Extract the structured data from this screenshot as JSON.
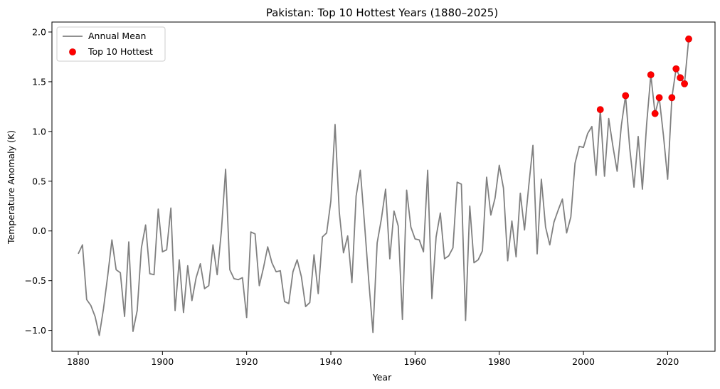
{
  "chart_data": {
    "type": "line",
    "title": "Pakistan: Top 10 Hottest Years (1880–2025)",
    "xlabel": "Year",
    "ylabel": "Temperature Anomaly (K)",
    "xlim": [
      1873.75,
      2031.25
    ],
    "ylim": [
      -1.21,
      2.1
    ],
    "xticks": [
      1880,
      1900,
      1920,
      1940,
      1960,
      1980,
      2000,
      2020
    ],
    "xtick_labels": [
      "1880",
      "1900",
      "1920",
      "1940",
      "1960",
      "1980",
      "2000",
      "2020"
    ],
    "yticks": [
      -1.0,
      -0.5,
      0.0,
      0.5,
      1.0,
      1.5,
      2.0
    ],
    "ytick_labels": [
      "−1.0",
      "−0.5",
      "0.0",
      "0.5",
      "1.0",
      "1.5",
      "2.0"
    ],
    "grid": false,
    "legend": {
      "placement": "top-left",
      "entries": [
        "Annual Mean",
        "Top 10 Hottest"
      ]
    },
    "series": [
      {
        "name": "Annual Mean",
        "color": "#808080",
        "x": [
          1880,
          1881,
          1882,
          1883,
          1884,
          1885,
          1886,
          1887,
          1888,
          1889,
          1890,
          1891,
          1892,
          1893,
          1894,
          1895,
          1896,
          1897,
          1898,
          1899,
          1900,
          1901,
          1902,
          1903,
          1904,
          1905,
          1906,
          1907,
          1908,
          1909,
          1910,
          1911,
          1912,
          1913,
          1914,
          1915,
          1916,
          1917,
          1918,
          1919,
          1920,
          1921,
          1922,
          1923,
          1924,
          1925,
          1926,
          1927,
          1928,
          1929,
          1930,
          1931,
          1932,
          1933,
          1934,
          1935,
          1936,
          1937,
          1938,
          1939,
          1940,
          1941,
          1942,
          1943,
          1944,
          1945,
          1946,
          1947,
          1948,
          1949,
          1950,
          1951,
          1952,
          1953,
          1954,
          1955,
          1956,
          1957,
          1958,
          1959,
          1960,
          1961,
          1962,
          1963,
          1964,
          1965,
          1966,
          1967,
          1968,
          1969,
          1970,
          1971,
          1972,
          1973,
          1974,
          1975,
          1976,
          1977,
          1978,
          1979,
          1980,
          1981,
          1982,
          1983,
          1984,
          1985,
          1986,
          1987,
          1988,
          1989,
          1990,
          1991,
          1992,
          1993,
          1994,
          1995,
          1996,
          1997,
          1998,
          1999,
          2000,
          2001,
          2002,
          2003,
          2004,
          2005,
          2006,
          2007,
          2008,
          2009,
          2010,
          2011,
          2012,
          2013,
          2014,
          2015,
          2016,
          2017,
          2018,
          2019,
          2020,
          2021,
          2022,
          2023,
          2024,
          2025
        ],
        "y": [
          -0.23,
          -0.14,
          -0.69,
          -0.75,
          -0.86,
          -1.05,
          -0.78,
          -0.45,
          -0.09,
          -0.39,
          -0.42,
          -0.86,
          -0.11,
          -1.01,
          -0.8,
          -0.17,
          0.06,
          -0.43,
          -0.44,
          0.22,
          -0.21,
          -0.19,
          0.23,
          -0.8,
          -0.29,
          -0.82,
          -0.35,
          -0.7,
          -0.47,
          -0.33,
          -0.58,
          -0.55,
          -0.14,
          -0.44,
          0.0,
          0.62,
          -0.39,
          -0.48,
          -0.49,
          -0.47,
          -0.87,
          -0.01,
          -0.03,
          -0.55,
          -0.37,
          -0.16,
          -0.32,
          -0.41,
          -0.4,
          -0.71,
          -0.73,
          -0.41,
          -0.29,
          -0.46,
          -0.76,
          -0.72,
          -0.24,
          -0.63,
          -0.06,
          -0.02,
          0.3,
          1.07,
          0.19,
          -0.22,
          -0.05,
          -0.52,
          0.35,
          0.61,
          0.07,
          -0.5,
          -1.02,
          -0.12,
          0.12,
          0.42,
          -0.28,
          0.2,
          0.05,
          -0.89,
          0.41,
          0.04,
          -0.08,
          -0.09,
          -0.21,
          0.61,
          -0.68,
          -0.06,
          0.18,
          -0.28,
          -0.25,
          -0.17,
          0.49,
          0.47,
          -0.9,
          0.25,
          -0.32,
          -0.29,
          -0.2,
          0.54,
          0.16,
          0.33,
          0.66,
          0.43,
          -0.3,
          0.1,
          -0.26,
          0.38,
          0.01,
          0.45,
          0.86,
          -0.23,
          0.52,
          0.04,
          -0.14,
          0.09,
          0.21,
          0.32,
          -0.02,
          0.14,
          0.68,
          0.85,
          0.84,
          0.98,
          1.05,
          0.56,
          1.22,
          0.55,
          1.13,
          0.85,
          0.6,
          1.06,
          1.36,
          0.83,
          0.44,
          0.95,
          0.42,
          1.07,
          1.57,
          1.18,
          1.34,
          0.96,
          0.52,
          1.34,
          1.63,
          1.54,
          1.48,
          1.93
        ]
      },
      {
        "name": "Top 10 Hottest",
        "color": "#ff0000",
        "x": [
          2004,
          2010,
          2016,
          2017,
          2018,
          2021,
          2022,
          2023,
          2024,
          2025
        ],
        "y": [
          1.22,
          1.36,
          1.57,
          1.18,
          1.34,
          1.34,
          1.63,
          1.54,
          1.48,
          1.93
        ]
      }
    ]
  }
}
